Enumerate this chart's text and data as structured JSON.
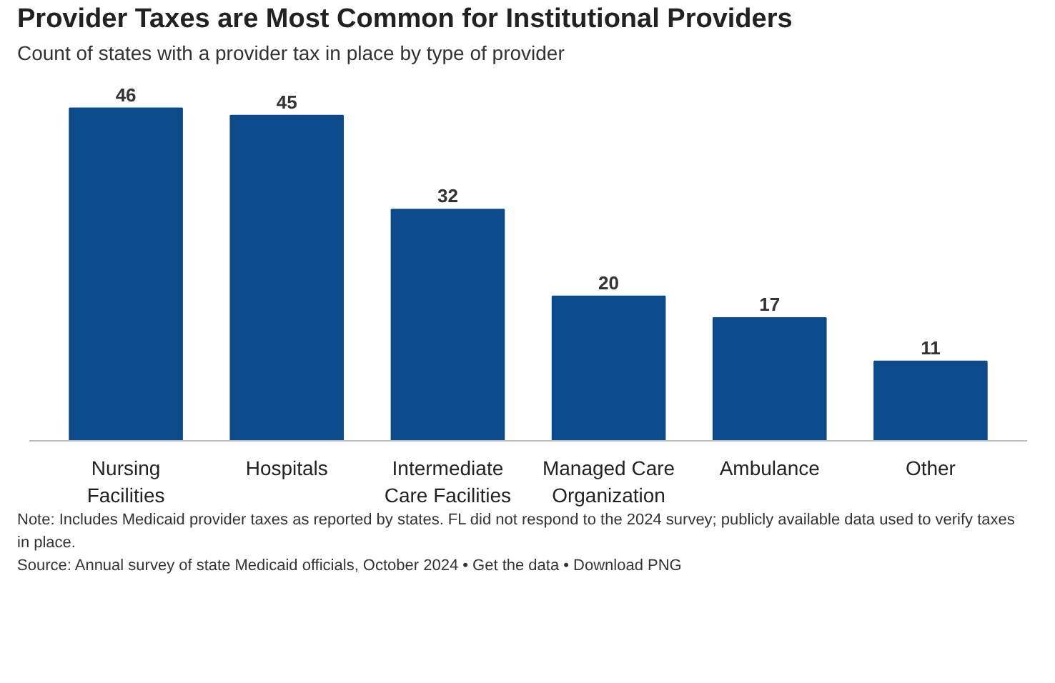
{
  "chart_data": {
    "type": "bar",
    "title": "Provider Taxes are Most Common for Institutional Providers",
    "subtitle": "Count of states with a provider tax in place by type of provider",
    "categories": [
      "Nursing Facilities",
      "Hospitals",
      "Intermediate Care Facilities",
      "Managed Care Organization",
      "Ambulance",
      "Other"
    ],
    "values": [
      46,
      45,
      32,
      20,
      17,
      11
    ],
    "color": "#0b4a8b",
    "data_labels": true,
    "grid": false,
    "annotations": [
      "Note: Includes Medicaid provider taxes as reported by states. FL did not respond to the 2024 survey; publicly available data used to verify taxes in place.",
      "Source: Annual survey of state Medicaid officials, October 2024 • Get the data • Download PNG"
    ]
  }
}
